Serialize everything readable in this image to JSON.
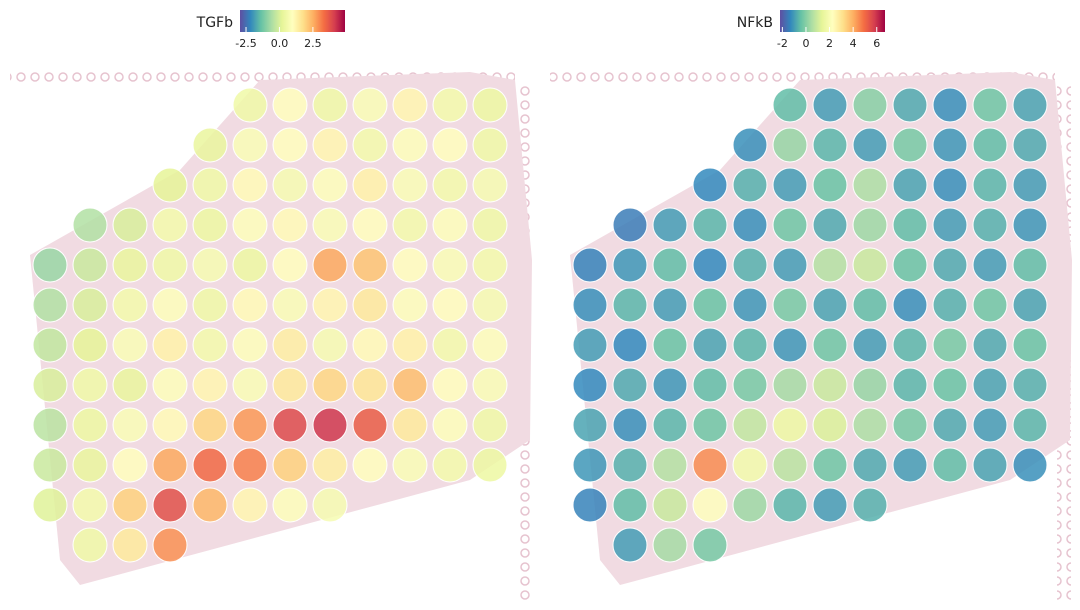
{
  "chart_data": [
    {
      "type": "spatial",
      "legend_title": "TGFb",
      "colormap": [
        "#5e4fa2",
        "#3288bd",
        "#66c2a5",
        "#abdda4",
        "#e6f598",
        "#ffffbf",
        "#fee08b",
        "#fdae61",
        "#f46d43",
        "#d53e4f",
        "#9e0142"
      ],
      "clim": [
        -2.95,
        4.9
      ],
      "ticks": [
        -2.5,
        {
          "value": 0,
          "label": "0.0"
        },
        2.5
      ],
      "values": [
        [
          null,
          null,
          null,
          null,
          null,
          0.5,
          1,
          0.5,
          0.8,
          1.2,
          0.6,
          0.4
        ],
        [
          null,
          null,
          null,
          null,
          0.3,
          0.8,
          1,
          1.2,
          0.6,
          0.9,
          1,
          0.5
        ],
        [
          null,
          null,
          null,
          0.2,
          0.5,
          1.1,
          0.7,
          0.9,
          1.3,
          0.8,
          0.6,
          0.7
        ],
        [
          null,
          -0.5,
          0,
          0.6,
          0.4,
          0.9,
          1.1,
          0.8,
          1,
          0.6,
          0.9,
          0.5
        ],
        [
          -0.8,
          -0.2,
          0.3,
          0.5,
          0.7,
          0.4,
          1,
          2.6,
          2.2,
          1,
          0.8,
          0.6
        ],
        [
          -0.5,
          0,
          0.6,
          0.9,
          0.5,
          1.1,
          0.8,
          1.2,
          1.5,
          0.9,
          1,
          0.7
        ],
        [
          -0.3,
          0.2,
          0.8,
          1.3,
          0.6,
          0.9,
          1.4,
          0.7,
          1.1,
          1.3,
          0.6,
          0.9
        ],
        [
          0,
          0.5,
          0.3,
          0.9,
          1.2,
          0.8,
          1.5,
          1.9,
          1.6,
          2.3,
          1,
          0.8
        ],
        [
          -0.4,
          0.4,
          0.8,
          1.1,
          1.9,
          2.8,
          3.9,
          4.2,
          3.6,
          1.5,
          0.9,
          0.5
        ],
        [
          -0.2,
          0.3,
          1,
          2.6,
          3.4,
          3.1,
          2,
          1.4,
          1,
          0.8,
          0.6,
          0.4
        ],
        [
          0.1,
          0.6,
          2,
          3.8,
          2.4,
          1.2,
          0.9,
          0.7,
          null,
          null,
          null,
          null
        ],
        [
          null,
          0.5,
          1.5,
          2.9,
          null,
          null,
          null,
          null,
          null,
          null,
          null,
          null
        ]
      ]
    },
    {
      "type": "spatial",
      "legend_title": "NFkB",
      "colormap": [
        "#5e4fa2",
        "#3288bd",
        "#66c2a5",
        "#abdda4",
        "#e6f598",
        "#ffffbf",
        "#fee08b",
        "#fdae61",
        "#f46d43",
        "#d53e4f",
        "#9e0142"
      ],
      "clim": [
        -2.2,
        6.7
      ],
      "ticks": [
        -2,
        0,
        2,
        4,
        6
      ],
      "values": [
        [
          null,
          null,
          null,
          null,
          null,
          -0.5,
          -1,
          0,
          -0.8,
          -1.2,
          -0.3,
          -0.9
        ],
        [
          null,
          null,
          null,
          null,
          -1.2,
          0.2,
          -0.6,
          -1,
          -0.2,
          -1.1,
          -0.5,
          -0.8
        ],
        [
          null,
          null,
          null,
          -1.3,
          -0.7,
          -1,
          -0.4,
          0.5,
          -0.9,
          -1.2,
          -0.6,
          -1
        ],
        [
          null,
          -1.5,
          -1,
          -0.6,
          -1.2,
          -0.3,
          -0.8,
          0.3,
          -0.5,
          -1,
          -0.7,
          -1.1
        ],
        [
          -1.4,
          -1.1,
          -0.5,
          -1.3,
          -0.7,
          -1,
          0.6,
          0.9,
          -0.4,
          -0.8,
          -1,
          -0.5
        ],
        [
          -1.2,
          -0.6,
          -1,
          -0.4,
          -1.1,
          -0.2,
          -0.9,
          -0.5,
          -1.2,
          -0.7,
          -0.3,
          -0.9
        ],
        [
          -1,
          -1.3,
          -0.4,
          -0.9,
          -0.6,
          -1.1,
          -0.3,
          -1,
          -0.6,
          -0.2,
          -0.8,
          -0.4
        ],
        [
          -1.3,
          -0.8,
          -1.1,
          -0.5,
          -0.2,
          0.4,
          0.9,
          0.2,
          -0.6,
          -0.4,
          -0.9,
          -0.7
        ],
        [
          -0.9,
          -1.2,
          -0.6,
          -0.3,
          0.8,
          1.6,
          1.2,
          0.5,
          -0.2,
          -0.8,
          -1,
          -0.6
        ],
        [
          -1.1,
          -0.7,
          0.6,
          4.5,
          1.8,
          0.7,
          -0.3,
          -0.8,
          -1,
          -0.5,
          -0.9,
          -1.2
        ],
        [
          -1.4,
          -0.5,
          0.9,
          2.2,
          0.3,
          -0.6,
          -1,
          -0.7,
          null,
          null,
          null,
          null
        ],
        [
          null,
          -1,
          0.4,
          -0.2,
          null,
          null,
          null,
          null,
          null,
          null,
          null,
          null
        ]
      ]
    }
  ]
}
